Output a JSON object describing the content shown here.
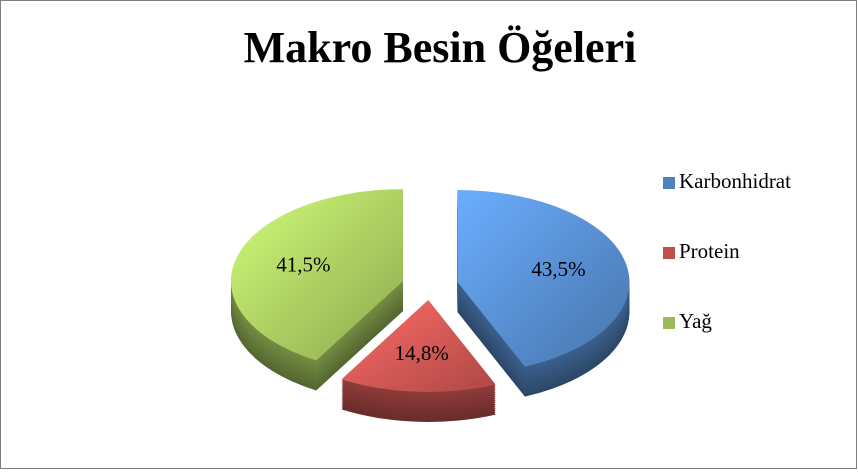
{
  "chart_data": {
    "type": "pie",
    "title": "Makro Besin Öğeleri",
    "categories": [
      "Karbonhidrat",
      "Protein",
      "Yağ"
    ],
    "values": [
      43.5,
      14.8,
      41.5
    ],
    "value_labels": [
      "43,5%",
      "14,8%",
      "41,5%"
    ],
    "colors": [
      "#4f81bd",
      "#c0504d",
      "#9bbb59"
    ],
    "legend": "right"
  }
}
